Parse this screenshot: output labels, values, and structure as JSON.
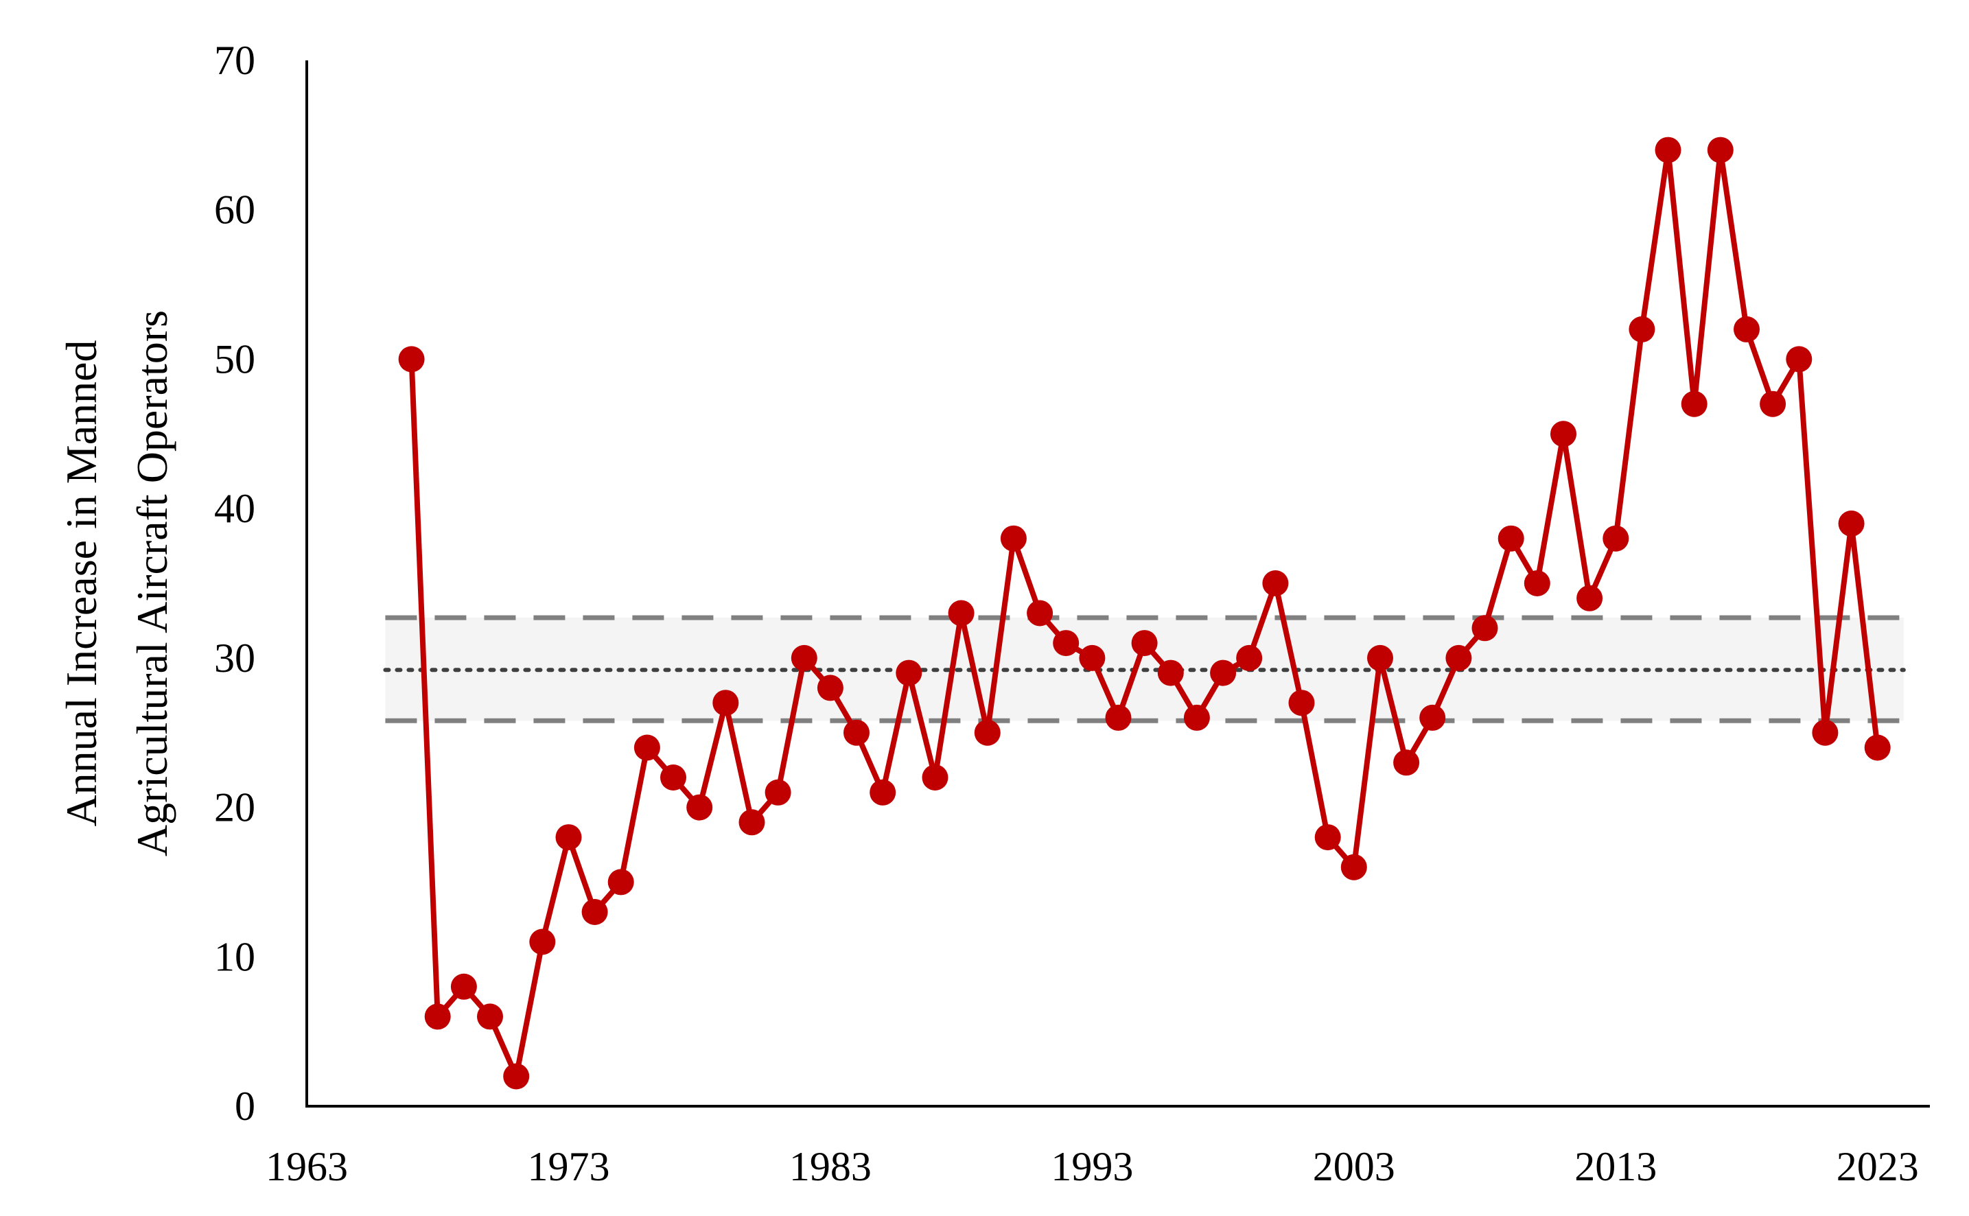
{
  "chart_data": {
    "type": "line",
    "title": "",
    "xlabel": "",
    "ylabel_lines": [
      "Annual Increase in Manned",
      "Agricultural Aircraft Operators"
    ],
    "xlim": [
      1963,
      2025
    ],
    "ylim": [
      0,
      70
    ],
    "xticks": [
      1963,
      1973,
      1983,
      1993,
      2003,
      2013,
      2023
    ],
    "yticks": [
      0,
      10,
      20,
      30,
      40,
      50,
      60,
      70
    ],
    "grid": false,
    "legend": "none",
    "series": [
      {
        "color": "#c00000",
        "x": [
          1967,
          1968,
          1969,
          1970,
          1971,
          1972,
          1973,
          1974,
          1975,
          1976,
          1977,
          1978,
          1979,
          1980,
          1981,
          1982,
          1983,
          1984,
          1985,
          1986,
          1987,
          1988,
          1989,
          1990,
          1991,
          1992,
          1993,
          1994,
          1995,
          1996,
          1997,
          1998,
          1999,
          2000,
          2001,
          2002,
          2003,
          2004,
          2005,
          2006,
          2007,
          2008,
          2009,
          2010,
          2011,
          2012,
          2013,
          2014,
          2015,
          2016,
          2017,
          2018,
          2019,
          2020,
          2021,
          2022,
          2023
        ],
        "y": [
          50,
          6,
          8,
          6,
          2,
          11,
          18,
          13,
          15,
          24,
          22,
          20,
          27,
          19,
          21,
          30,
          28,
          25,
          21,
          29,
          22,
          33,
          25,
          38,
          33,
          31,
          30,
          26,
          31,
          29,
          26,
          29,
          30,
          35,
          27,
          18,
          16,
          30,
          23,
          26,
          30,
          32,
          38,
          35,
          45,
          34,
          38,
          52,
          64,
          47,
          64,
          52,
          47,
          50,
          25,
          39,
          24
        ]
      }
    ],
    "reference": {
      "mean": 29.2,
      "band_low": 25.8,
      "band_high": 32.7,
      "band_x": [
        1966,
        2024
      ],
      "band_color": "#e6e6e6",
      "line_color": "#808080"
    }
  }
}
